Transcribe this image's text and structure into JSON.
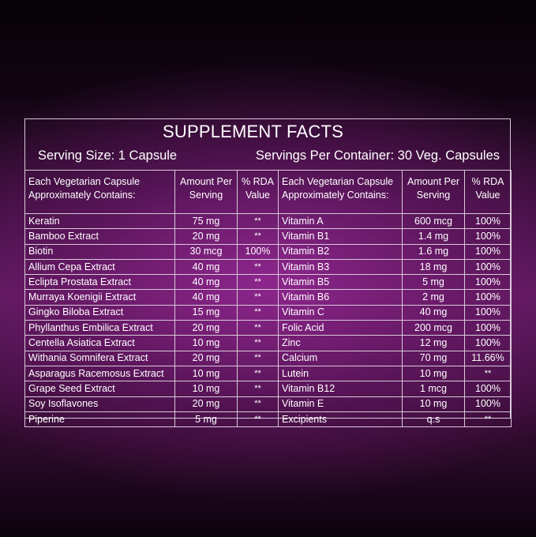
{
  "header": {
    "title": "SUPPLEMENT FACTS",
    "serving_size": "Serving Size: 1 Capsule",
    "servings_per_container": "Servings Per Container: 30 Veg. Capsules"
  },
  "columns": {
    "ingredient": "Each Vegetarian Capsule Approximately Contains:",
    "ingredient_line1": "Each Vegetarian Capsule",
    "ingredient_line2": "Approximately Contains:",
    "amount_line1": "Amount Per",
    "amount_line2": "Serving",
    "rda_line1": "% RDA",
    "rda_line2": "Value"
  },
  "left_rows": [
    {
      "name": "Keratin",
      "amount": "75 mg",
      "rda": "**"
    },
    {
      "name": "Bamboo Extract",
      "amount": "20 mg",
      "rda": "**"
    },
    {
      "name": "Biotin",
      "amount": "30 mcg",
      "rda": "100%"
    },
    {
      "name": "Allium Cepa Extract",
      "amount": "40 mg",
      "rda": "**"
    },
    {
      "name": "Eclipta Prostata Extract",
      "amount": "40 mg",
      "rda": "**"
    },
    {
      "name": "Murraya Koenigii Extract",
      "amount": "40 mg",
      "rda": "**"
    },
    {
      "name": "Gingko Biloba Extract",
      "amount": "15 mg",
      "rda": "**"
    },
    {
      "name": "Phyllanthus Embilica Extract",
      "amount": "20 mg",
      "rda": "**"
    },
    {
      "name": "Centella Asiatica Extract",
      "amount": "10 mg",
      "rda": "**"
    },
    {
      "name": "Withania Somnifera Extract",
      "amount": "20 mg",
      "rda": "**"
    },
    {
      "name": "Asparagus Racemosus Extract",
      "amount": "10 mg",
      "rda": "**"
    },
    {
      "name": "Grape Seed Extract",
      "amount": "10 mg",
      "rda": "**"
    },
    {
      "name": "Soy Isoflavones",
      "amount": "20 mg",
      "rda": "**"
    },
    {
      "name": "Piperine",
      "amount": "5 mg",
      "rda": "**"
    }
  ],
  "right_rows": [
    {
      "name": "Vitamin A",
      "amount": "600 mcg",
      "rda": "100%"
    },
    {
      "name": "Vitamin B1",
      "amount": "1.4 mg",
      "rda": "100%"
    },
    {
      "name": "Vitamin B2",
      "amount": "1.6 mg",
      "rda": "100%"
    },
    {
      "name": "Vitamin B3",
      "amount": "18 mg",
      "rda": "100%"
    },
    {
      "name": "Vitamin B5",
      "amount": "5 mg",
      "rda": "100%"
    },
    {
      "name": "Vitamin B6",
      "amount": "2 mg",
      "rda": "100%"
    },
    {
      "name": "Vitamin C",
      "amount": "40 mg",
      "rda": "100%"
    },
    {
      "name": "Folic Acid",
      "amount": "200 mcg",
      "rda": "100%"
    },
    {
      "name": "Zinc",
      "amount": "12 mg",
      "rda": "100%"
    },
    {
      "name": "Calcium",
      "amount": "70 mg",
      "rda": "11.66%"
    },
    {
      "name": "Lutein",
      "amount": "10 mg",
      "rda": "**"
    },
    {
      "name": "Vitamin B12",
      "amount": "1 mcg",
      "rda": "100%"
    },
    {
      "name": "Vitamin E",
      "amount": "10 mg",
      "rda": "100%"
    },
    {
      "name": "Excipients",
      "amount": "q.s",
      "rda": "**"
    }
  ]
}
